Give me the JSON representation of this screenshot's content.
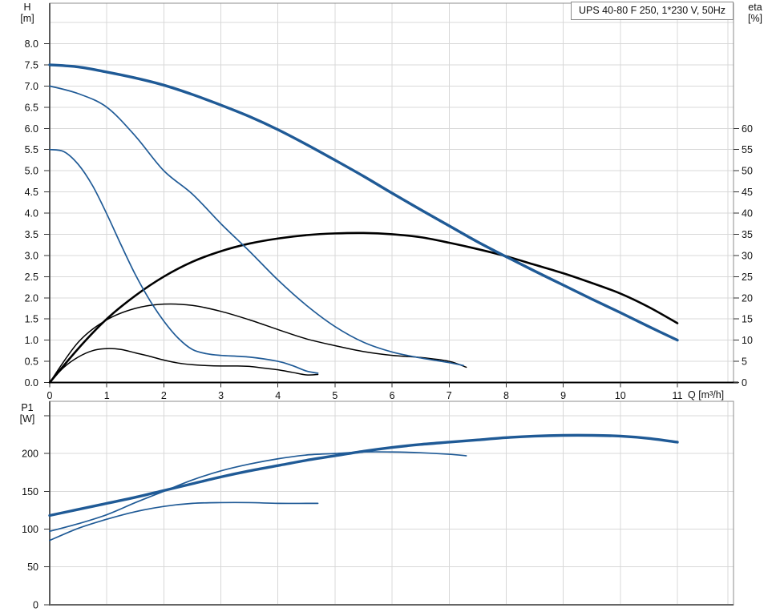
{
  "title": "UPS 40-80 F 250, 1*230 V, 50Hz",
  "axis_labels": {
    "h": "H",
    "h_unit": "[m]",
    "eta": "eta",
    "eta_unit": "[%]",
    "p1": "P1",
    "p1_unit": "[W]",
    "q": "Q [m³/h]"
  },
  "colors": {
    "curve_blue": "#1f5a96",
    "curve_black": "#000000",
    "grid": "#d8d8d8",
    "border": "#8c8c8c"
  },
  "chart_data": [
    {
      "id": "head-efficiency-chart",
      "type": "line",
      "title": "UPS 40-80 F 250, 1*230 V, 50Hz",
      "grid": "on",
      "x_axis": {
        "label": "Q [m³/h]",
        "range": [
          0,
          11.98
        ],
        "ticks": [
          "0",
          "1",
          "2",
          "3",
          "4",
          "5",
          "6",
          "7",
          "8",
          "9",
          "10",
          "11"
        ]
      },
      "y_axis_left": {
        "label": "H [m]",
        "range": [
          0,
          8.95
        ],
        "ticks": [
          "8.0",
          "7.5",
          "7.0",
          "6.5",
          "6.0",
          "5.5",
          "5.0",
          "4.5",
          "4.0",
          "3.5",
          "3.0",
          "2.5",
          "2.0",
          "1.5",
          "1.0",
          "0.5",
          "0.0"
        ]
      },
      "y_axis_right": {
        "label": "eta [%]",
        "range": [
          0,
          89.5
        ],
        "ticks": [
          "60",
          "55",
          "50",
          "45",
          "40",
          "35",
          "30",
          "25",
          "20",
          "15",
          "10",
          "5",
          "0"
        ]
      },
      "series": [
        {
          "name": "head-speed-3",
          "axis": "left",
          "color": "#1f5a96",
          "width": 3.4,
          "points": [
            [
              0,
              7.5
            ],
            [
              0.5,
              7.45
            ],
            [
              1,
              7.33
            ],
            [
              1.5,
              7.19
            ],
            [
              2,
              7.02
            ],
            [
              2.5,
              6.8
            ],
            [
              3,
              6.55
            ],
            [
              3.5,
              6.28
            ],
            [
              4,
              5.97
            ],
            [
              4.5,
              5.62
            ],
            [
              5,
              5.25
            ],
            [
              5.5,
              4.87
            ],
            [
              6,
              4.47
            ],
            [
              6.5,
              4.08
            ],
            [
              7,
              3.7
            ],
            [
              7.5,
              3.32
            ],
            [
              8,
              2.97
            ],
            [
              8.5,
              2.63
            ],
            [
              9,
              2.3
            ],
            [
              9.5,
              1.97
            ],
            [
              10,
              1.65
            ],
            [
              10.5,
              1.32
            ],
            [
              11,
              1.0
            ]
          ]
        },
        {
          "name": "head-speed-2",
          "axis": "left",
          "color": "#1f5a96",
          "width": 1.7,
          "points": [
            [
              0,
              7.0
            ],
            [
              0.5,
              6.82
            ],
            [
              1,
              6.5
            ],
            [
              1.5,
              5.82
            ],
            [
              2,
              5.0
            ],
            [
              2.5,
              4.45
            ],
            [
              3,
              3.75
            ],
            [
              3.5,
              3.1
            ],
            [
              4,
              2.42
            ],
            [
              4.5,
              1.82
            ],
            [
              5,
              1.32
            ],
            [
              5.5,
              0.95
            ],
            [
              6,
              0.72
            ],
            [
              6.5,
              0.58
            ],
            [
              7,
              0.47
            ],
            [
              7.25,
              0.4
            ]
          ]
        },
        {
          "name": "head-speed-1",
          "axis": "left",
          "color": "#1f5a96",
          "width": 1.7,
          "points": [
            [
              0,
              5.5
            ],
            [
              0.25,
              5.45
            ],
            [
              0.5,
              5.15
            ],
            [
              0.75,
              4.65
            ],
            [
              1,
              3.98
            ],
            [
              1.25,
              3.25
            ],
            [
              1.5,
              2.55
            ],
            [
              1.75,
              1.95
            ],
            [
              2,
              1.45
            ],
            [
              2.25,
              1.05
            ],
            [
              2.5,
              0.78
            ],
            [
              2.75,
              0.68
            ],
            [
              3,
              0.64
            ],
            [
              3.5,
              0.6
            ],
            [
              4,
              0.5
            ],
            [
              4.25,
              0.4
            ],
            [
              4.5,
              0.27
            ],
            [
              4.7,
              0.22
            ]
          ]
        },
        {
          "name": "eta-speed-3",
          "axis": "right",
          "color": "#000000",
          "width": 2.6,
          "points": [
            [
              0,
              0
            ],
            [
              0.5,
              8
            ],
            [
              1,
              15
            ],
            [
              1.5,
              20.5
            ],
            [
              2,
              25
            ],
            [
              2.5,
              28.5
            ],
            [
              3,
              31
            ],
            [
              3.5,
              32.8
            ],
            [
              4,
              34
            ],
            [
              4.5,
              34.8
            ],
            [
              5,
              35.2
            ],
            [
              5.5,
              35.3
            ],
            [
              6,
              35
            ],
            [
              6.5,
              34.3
            ],
            [
              7,
              33
            ],
            [
              7.5,
              31.5
            ],
            [
              8,
              29.8
            ],
            [
              8.5,
              27.8
            ],
            [
              9,
              25.8
            ],
            [
              9.5,
              23.5
            ],
            [
              10,
              21
            ],
            [
              10.5,
              17.8
            ],
            [
              11,
              14
            ]
          ]
        },
        {
          "name": "eta-speed-2",
          "axis": "right",
          "color": "#000000",
          "width": 1.5,
          "points": [
            [
              0,
              0
            ],
            [
              0.5,
              9.5
            ],
            [
              1,
              14.8
            ],
            [
              1.5,
              17.5
            ],
            [
              2,
              18.5
            ],
            [
              2.5,
              18.2
            ],
            [
              3,
              16.8
            ],
            [
              3.5,
              14.8
            ],
            [
              4,
              12.5
            ],
            [
              4.5,
              10.3
            ],
            [
              5,
              8.7
            ],
            [
              5.5,
              7.3
            ],
            [
              6,
              6.4
            ],
            [
              6.5,
              5.9
            ],
            [
              7,
              5.0
            ],
            [
              7.3,
              3.6
            ]
          ]
        },
        {
          "name": "eta-speed-1",
          "axis": "right",
          "color": "#000000",
          "width": 1.5,
          "points": [
            [
              0,
              0
            ],
            [
              0.25,
              3.6
            ],
            [
              0.5,
              6
            ],
            [
              0.75,
              7.5
            ],
            [
              1,
              8
            ],
            [
              1.25,
              7.8
            ],
            [
              1.5,
              7
            ],
            [
              1.75,
              6.2
            ],
            [
              2,
              5.3
            ],
            [
              2.25,
              4.6
            ],
            [
              2.5,
              4.2
            ],
            [
              2.75,
              4
            ],
            [
              3,
              3.9
            ],
            [
              3.25,
              3.9
            ],
            [
              3.5,
              3.8
            ],
            [
              3.75,
              3.4
            ],
            [
              4,
              3
            ],
            [
              4.25,
              2.4
            ],
            [
              4.5,
              1.8
            ],
            [
              4.7,
              1.9
            ]
          ]
        }
      ]
    },
    {
      "id": "power-chart",
      "type": "line",
      "grid": "on",
      "x_axis": {
        "label": "",
        "range": [
          0,
          11.98
        ],
        "ticks": []
      },
      "y_axis_left": {
        "label": "P1 [W]",
        "range": [
          0,
          269
        ],
        "ticks": [
          "200",
          "150",
          "100",
          "50",
          "0"
        ]
      },
      "series": [
        {
          "name": "p1-speed-3",
          "axis": "left",
          "color": "#1f5a96",
          "width": 3.4,
          "points": [
            [
              0,
              118
            ],
            [
              0.5,
              126
            ],
            [
              1,
              134
            ],
            [
              1.5,
              142
            ],
            [
              2,
              151
            ],
            [
              2.5,
              160
            ],
            [
              3,
              169
            ],
            [
              3.5,
              177
            ],
            [
              4,
              184
            ],
            [
              4.5,
              191
            ],
            [
              5,
              197
            ],
            [
              5.5,
              203
            ],
            [
              6,
              208
            ],
            [
              6.5,
              212
            ],
            [
              7,
              215
            ],
            [
              7.5,
              218
            ],
            [
              8,
              221
            ],
            [
              8.5,
              223
            ],
            [
              9,
              224
            ],
            [
              9.5,
              224
            ],
            [
              10,
              223
            ],
            [
              10.5,
              220
            ],
            [
              11,
              215
            ]
          ]
        },
        {
          "name": "p1-speed-2",
          "axis": "left",
          "color": "#1f5a96",
          "width": 1.7,
          "points": [
            [
              0,
              97
            ],
            [
              0.5,
              107
            ],
            [
              1,
              119
            ],
            [
              1.5,
              135
            ],
            [
              2,
              150
            ],
            [
              2.5,
              165
            ],
            [
              3,
              177
            ],
            [
              3.5,
              186
            ],
            [
              4,
              193
            ],
            [
              4.5,
              198
            ],
            [
              5,
              200
            ],
            [
              5.5,
              202
            ],
            [
              6,
              202
            ],
            [
              6.5,
              201
            ],
            [
              7,
              199
            ],
            [
              7.3,
              197
            ]
          ]
        },
        {
          "name": "p1-speed-1",
          "axis": "left",
          "color": "#1f5a96",
          "width": 1.7,
          "points": [
            [
              0,
              85
            ],
            [
              0.5,
              101
            ],
            [
              1,
              113
            ],
            [
              1.5,
              123
            ],
            [
              2,
              130
            ],
            [
              2.5,
              134
            ],
            [
              3,
              135
            ],
            [
              3.5,
              135
            ],
            [
              4,
              134
            ],
            [
              4.5,
              134
            ],
            [
              4.7,
              134
            ]
          ]
        }
      ]
    }
  ]
}
